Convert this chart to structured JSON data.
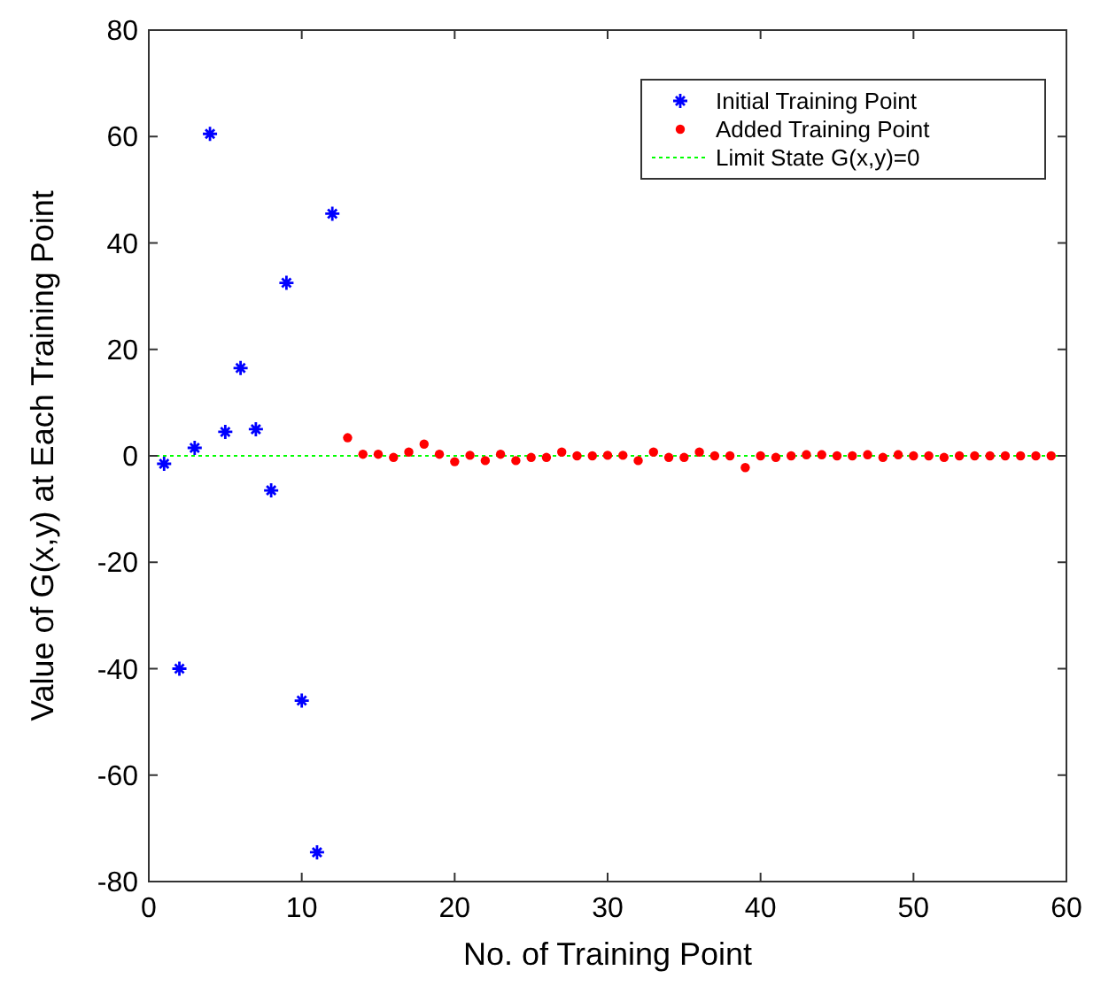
{
  "chart_data": {
    "type": "scatter",
    "xlabel": "No. of Training Point",
    "ylabel": "Value of G(x,y) at Each Training Point",
    "xlim": [
      0,
      60
    ],
    "ylim": [
      -80,
      80
    ],
    "xticks": [
      0,
      10,
      20,
      30,
      40,
      50,
      60
    ],
    "yticks": [
      -80,
      -60,
      -40,
      -20,
      0,
      20,
      40,
      60,
      80
    ],
    "grid": false,
    "legend": "top right",
    "series": [
      {
        "name": "Initial Training Point",
        "color": "#0000ff",
        "marker": "cross",
        "x": [
          1,
          2,
          3,
          4,
          5,
          6,
          7,
          8,
          9,
          10,
          11,
          12
        ],
        "values": [
          -1.5,
          -40,
          1.5,
          60.5,
          4.5,
          16.5,
          5,
          -6.5,
          32.5,
          -46,
          -74.5,
          45.5
        ]
      },
      {
        "name": "Added Training Point",
        "color": "#ff0000",
        "marker": "circle",
        "x": [
          13,
          14,
          15,
          16,
          17,
          18,
          19,
          20,
          21,
          22,
          23,
          24,
          25,
          26,
          27,
          28,
          29,
          30,
          31,
          32,
          33,
          34,
          35,
          36,
          37,
          38,
          39,
          40,
          41,
          42,
          43,
          44,
          45,
          46,
          47,
          48,
          49,
          50,
          51,
          52,
          53,
          54,
          55,
          56,
          57,
          58,
          59
        ],
        "values": [
          3.4,
          0.3,
          0.3,
          -0.3,
          0.7,
          2.2,
          0.3,
          -1.1,
          0.1,
          -0.9,
          0.3,
          -0.9,
          -0.3,
          -0.3,
          0.7,
          0,
          0,
          0.1,
          0.1,
          -0.9,
          0.7,
          -0.3,
          -0.3,
          0.7,
          0,
          0,
          -2.2,
          0,
          -0.3,
          0,
          0.2,
          0.2,
          0,
          0,
          0.2,
          -0.3,
          0.2,
          0,
          0,
          -0.3,
          0,
          0,
          0,
          0,
          0,
          0,
          0
        ]
      }
    ],
    "ref_lines": [
      {
        "axis": "y",
        "value": 0,
        "label": "Limit State G(x,y)=0",
        "color": "#00ff00",
        "line_style": "dotted"
      }
    ]
  }
}
